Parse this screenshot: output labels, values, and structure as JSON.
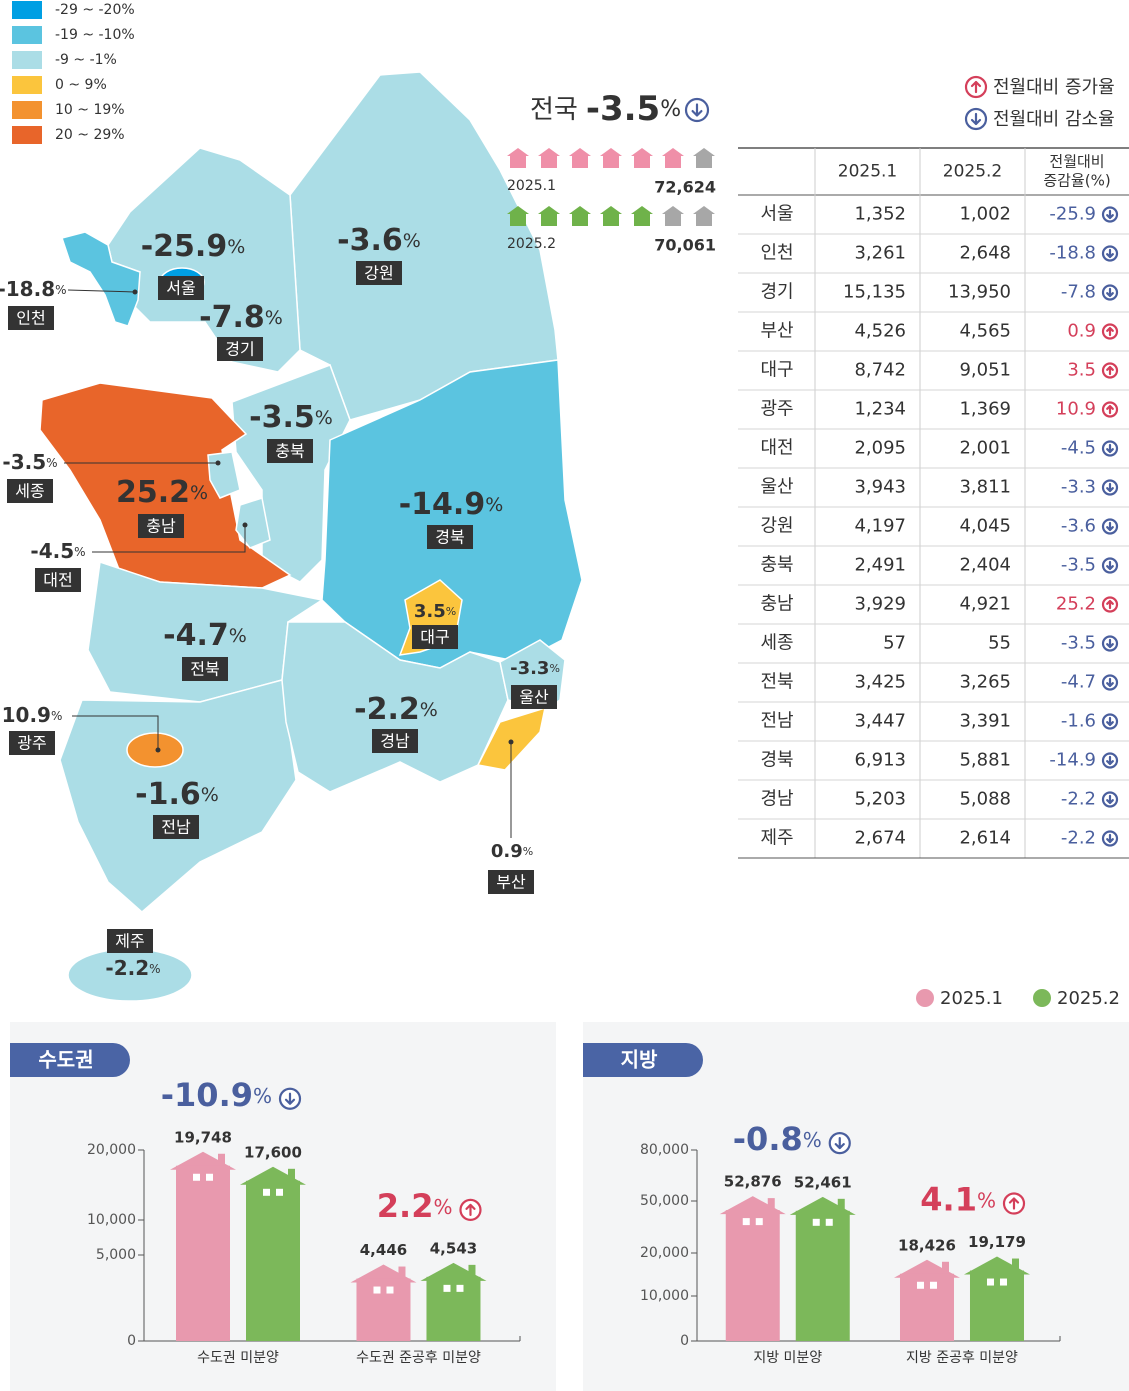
{
  "legend": {
    "items": [
      {
        "label": "-29 ~ -20%",
        "color": "#009fe3"
      },
      {
        "label": "-19 ~ -10%",
        "color": "#5bc4e0"
      },
      {
        "label": "-9 ~ -1%",
        "color": "#abdde6"
      },
      {
        "label": "0 ~ 9%",
        "color": "#fbc53d"
      },
      {
        "label": "10 ~ 19%",
        "color": "#f3922f"
      },
      {
        "label": "20 ~ 29%",
        "color": "#e8652a"
      }
    ]
  },
  "national": {
    "label": "전국",
    "value": -3.5,
    "unit": "%",
    "rows": [
      {
        "period": "2025.1",
        "total": "72,624",
        "color": "#ef8fa8"
      },
      {
        "period": "2025.2",
        "total": "70,061",
        "color": "#6fb24a"
      }
    ]
  },
  "trend_legend": {
    "up": "전월대비 증가율",
    "down": "전월대비 감소율"
  },
  "table": {
    "headers": [
      "2025.1",
      "2025.2"
    ],
    "rate_header": [
      "전월대비",
      "증감율(%)"
    ],
    "unit": "%",
    "rows": [
      {
        "name": "서울",
        "v1": "1,352",
        "v2": "1,002",
        "rate": -25.9,
        "color": "#009fe3"
      },
      {
        "name": "인천",
        "v1": "3,261",
        "v2": "2,648",
        "rate": -18.8,
        "color": "#5bc4e0"
      },
      {
        "name": "경기",
        "v1": "15,135",
        "v2": "13,950",
        "rate": -7.8,
        "color": "#abdde6"
      },
      {
        "name": "부산",
        "v1": "4,526",
        "v2": "4,565",
        "rate": 0.9,
        "color": "#fbc53d"
      },
      {
        "name": "대구",
        "v1": "8,742",
        "v2": "9,051",
        "rate": 3.5,
        "color": "#fbc53d"
      },
      {
        "name": "광주",
        "v1": "1,234",
        "v2": "1,369",
        "rate": 10.9,
        "color": "#f3922f"
      },
      {
        "name": "대전",
        "v1": "2,095",
        "v2": "2,001",
        "rate": -4.5,
        "color": "#abdde6"
      },
      {
        "name": "울산",
        "v1": "3,943",
        "v2": "3,811",
        "rate": -3.3,
        "color": "#abdde6"
      },
      {
        "name": "강원",
        "v1": "4,197",
        "v2": "4,045",
        "rate": -3.6,
        "color": "#abdde6"
      },
      {
        "name": "충북",
        "v1": "2,491",
        "v2": "2,404",
        "rate": -3.5,
        "color": "#abdde6"
      },
      {
        "name": "충남",
        "v1": "3,929",
        "v2": "4,921",
        "rate": 25.2,
        "color": "#e8652a"
      },
      {
        "name": "세종",
        "v1": "57",
        "v2": "55",
        "rate": -3.5,
        "color": "#abdde6"
      },
      {
        "name": "전북",
        "v1": "3,425",
        "v2": "3,265",
        "rate": -4.7,
        "color": "#abdde6"
      },
      {
        "name": "전남",
        "v1": "3,447",
        "v2": "3,391",
        "rate": -1.6,
        "color": "#abdde6"
      },
      {
        "name": "경북",
        "v1": "6,913",
        "v2": "5,881",
        "rate": -14.9,
        "color": "#5bc4e0"
      },
      {
        "name": "경남",
        "v1": "5,203",
        "v2": "5,088",
        "rate": -2.2,
        "color": "#abdde6"
      },
      {
        "name": "제주",
        "v1": "2,674",
        "v2": "2,614",
        "rate": -2.2,
        "color": "#abdde6"
      }
    ]
  },
  "chart_data": [
    {
      "type": "bar",
      "title": "수도권",
      "categories": [
        "수도권 미분양",
        "수도권 준공후 미분양"
      ],
      "series": [
        {
          "name": "2025.1",
          "color": "#e899ae",
          "values": [
            19748,
            4446
          ],
          "value_labels": [
            "19,748",
            "4,446"
          ]
        },
        {
          "name": "2025.2",
          "color": "#7cb85a",
          "values": [
            17600,
            4543
          ],
          "value_labels": [
            "17,600",
            "4,543"
          ]
        }
      ],
      "changes": [
        -10.9,
        2.2
      ],
      "unit": "%",
      "ylim": [
        0,
        20000
      ],
      "yticks": [
        0,
        {
          "value": 5000,
          "label": "5,000"
        },
        {
          "value": 10000,
          "label": "10,000"
        },
        {
          "value": 20000,
          "label": "20,000"
        }
      ]
    },
    {
      "type": "bar",
      "title": "지방",
      "categories": [
        "지방 미분양",
        "지방 준공후 미분양"
      ],
      "series": [
        {
          "name": "2025.1",
          "color": "#e899ae",
          "values": [
            52876,
            18426
          ],
          "value_labels": [
            "52,876",
            "18,426"
          ]
        },
        {
          "name": "2025.2",
          "color": "#7cb85a",
          "values": [
            52461,
            19179
          ],
          "value_labels": [
            "52,461",
            "19,179"
          ]
        }
      ],
      "changes": [
        -0.8,
        4.1
      ],
      "unit": "%",
      "ylim": [
        0,
        80000
      ],
      "yticks": [
        0,
        {
          "value": 10000,
          "label": "10,000"
        },
        {
          "value": 20000,
          "label": "20,000"
        },
        {
          "value": 50000,
          "label": "50,000"
        },
        {
          "value": 80000,
          "label": "80,000"
        }
      ]
    }
  ]
}
